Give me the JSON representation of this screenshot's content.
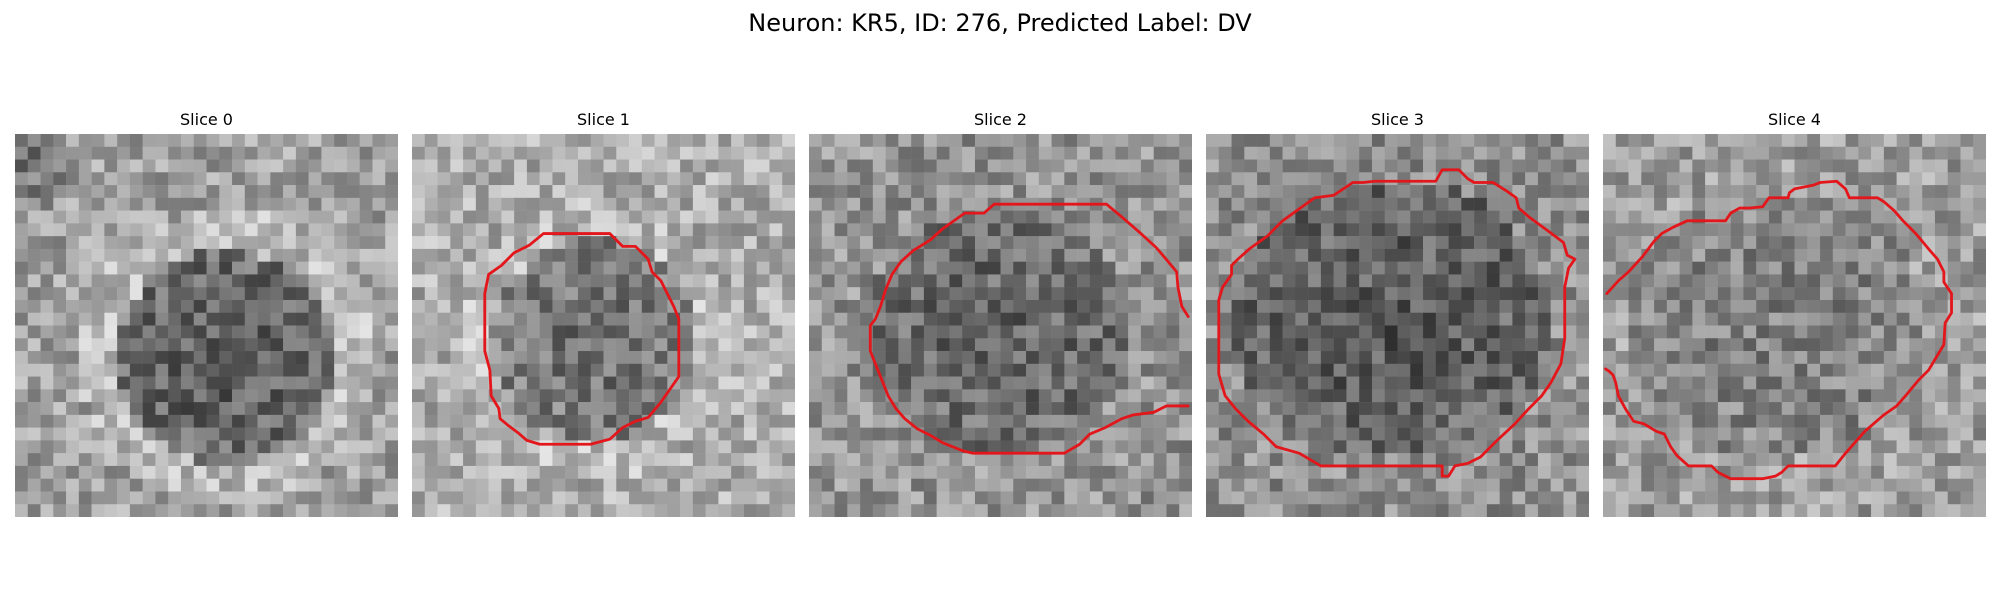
{
  "figure": {
    "title": "Neuron: KR5, ID: 276, Predicted Label: DV"
  },
  "contour_color": "#e3161b",
  "panels": [
    {
      "title": "Slice 0",
      "contour": null
    },
    {
      "title": "Slice 1",
      "contour": {
        "closed": true,
        "points": [
          [
            13.9,
            7.8
          ],
          [
            15.5,
            7.8
          ],
          [
            16.5,
            8.8
          ],
          [
            17.5,
            8.8
          ],
          [
            18.5,
            9.8
          ],
          [
            18.8,
            10.8
          ],
          [
            19.5,
            11.5
          ],
          [
            20.5,
            13.5
          ],
          [
            20.9,
            14.5
          ],
          [
            20.9,
            19
          ],
          [
            19.5,
            21
          ],
          [
            18.5,
            22.2
          ],
          [
            17.5,
            22.5
          ],
          [
            16.5,
            23
          ],
          [
            15.5,
            23.9
          ],
          [
            14,
            24.3
          ],
          [
            11.5,
            24.3
          ],
          [
            10,
            24.3
          ],
          [
            9,
            24
          ],
          [
            8.3,
            23.4
          ],
          [
            7.5,
            22.8
          ],
          [
            6.9,
            22.3
          ],
          [
            6.8,
            21.5
          ],
          [
            6.2,
            20.5
          ],
          [
            6.1,
            18.5
          ],
          [
            5.7,
            17
          ],
          [
            5.7,
            12.5
          ],
          [
            6,
            11
          ],
          [
            7,
            10.3
          ],
          [
            8,
            9.3
          ],
          [
            9.2,
            8.7
          ],
          [
            10.3,
            7.8
          ]
        ]
      }
    },
    {
      "title": "Slice 2",
      "contour": {
        "closed": false,
        "points": [
          [
            29.7,
            14.3
          ],
          [
            29.2,
            13.5
          ],
          [
            28.9,
            12
          ],
          [
            28.8,
            10.8
          ],
          [
            27.8,
            9.6
          ],
          [
            27.2,
            8.9
          ],
          [
            26,
            7.8
          ],
          [
            24.5,
            6.5
          ],
          [
            23.3,
            5.5
          ],
          [
            14.5,
            5.5
          ],
          [
            13.7,
            6.2
          ],
          [
            12.2,
            6.2
          ],
          [
            10.5,
            7.4
          ],
          [
            9.5,
            8.3
          ],
          [
            8.7,
            8.8
          ],
          [
            8.2,
            9.1
          ],
          [
            7.2,
            10
          ],
          [
            6.5,
            11
          ],
          [
            6,
            12.2
          ],
          [
            5.6,
            13.5
          ],
          [
            5.2,
            14.5
          ],
          [
            4.8,
            15
          ],
          [
            4.8,
            17
          ],
          [
            5.4,
            18.5
          ],
          [
            5.8,
            19.5
          ],
          [
            6.2,
            20.5
          ],
          [
            6.8,
            21.5
          ],
          [
            7.5,
            22.3
          ],
          [
            8.5,
            23.1
          ],
          [
            9.5,
            23.6
          ],
          [
            10.5,
            24.2
          ],
          [
            12,
            24.8
          ],
          [
            12.8,
            25
          ],
          [
            20,
            25
          ],
          [
            21.2,
            24.3
          ],
          [
            22,
            23.5
          ],
          [
            23.2,
            23
          ],
          [
            24.5,
            22.3
          ],
          [
            25.4,
            22
          ],
          [
            27,
            21.8
          ],
          [
            28,
            21.3
          ],
          [
            29.7,
            21.3
          ]
        ]
      }
    },
    {
      "title": "Slice 3",
      "contour": {
        "closed": true,
        "points": [
          [
            18.5,
            2.8
          ],
          [
            19.8,
            2.8
          ],
          [
            20.5,
            3.5
          ],
          [
            21,
            3.8
          ],
          [
            22.5,
            3.8
          ],
          [
            23.6,
            4.5
          ],
          [
            24.3,
            5
          ],
          [
            24.5,
            5.8
          ],
          [
            25.3,
            6.5
          ],
          [
            26.8,
            7.6
          ],
          [
            28,
            8.5
          ],
          [
            28.3,
            9.5
          ],
          [
            28.9,
            9.8
          ],
          [
            28.4,
            10.5
          ],
          [
            28.1,
            12
          ],
          [
            28.1,
            16
          ],
          [
            27.8,
            18
          ],
          [
            27,
            19.5
          ],
          [
            26.3,
            20.5
          ],
          [
            25.2,
            21.6
          ],
          [
            24.2,
            22.7
          ],
          [
            22.8,
            24
          ],
          [
            21.5,
            25.3
          ],
          [
            20.5,
            25.8
          ],
          [
            19.5,
            26
          ],
          [
            19,
            26.8
          ],
          [
            18.5,
            26.8
          ],
          [
            18.5,
            26
          ],
          [
            9,
            26
          ],
          [
            7.3,
            25
          ],
          [
            5.5,
            24.5
          ],
          [
            4.5,
            23.5
          ],
          [
            3.3,
            22.5
          ],
          [
            2.3,
            21.5
          ],
          [
            1.5,
            20.5
          ],
          [
            1.2,
            19.5
          ],
          [
            1,
            18.8
          ],
          [
            1,
            13
          ],
          [
            1.3,
            12
          ],
          [
            2,
            11
          ],
          [
            2,
            10.3
          ],
          [
            2.5,
            9.8
          ],
          [
            3.4,
            9
          ],
          [
            4.8,
            8
          ],
          [
            6,
            6.8
          ],
          [
            8.5,
            5
          ],
          [
            10,
            4.8
          ],
          [
            11.5,
            3.8
          ],
          [
            12.3,
            3.8
          ],
          [
            13.2,
            3.7
          ],
          [
            18,
            3.7
          ]
        ]
      }
    },
    {
      "title": "Slice 4",
      "contour": {
        "closed": false,
        "points": [
          [
            0.3,
            12.5
          ],
          [
            1.2,
            11.5
          ],
          [
            2,
            10.8
          ],
          [
            3.1,
            9.6
          ],
          [
            4,
            8.4
          ],
          [
            4.6,
            7.8
          ],
          [
            5.5,
            7.3
          ],
          [
            6.6,
            6.8
          ],
          [
            9.6,
            6.8
          ],
          [
            10,
            6.2
          ],
          [
            10.7,
            5.8
          ],
          [
            11.5,
            5.8
          ],
          [
            12.5,
            5.7
          ],
          [
            13,
            5
          ],
          [
            14.5,
            5
          ],
          [
            14.6,
            4.6
          ],
          [
            15,
            4.3
          ],
          [
            16.5,
            4
          ],
          [
            17,
            3.8
          ],
          [
            18.3,
            3.7
          ],
          [
            19,
            4.3
          ],
          [
            19.3,
            5
          ],
          [
            20.5,
            5
          ],
          [
            21.5,
            5
          ],
          [
            22,
            5.3
          ],
          [
            22.8,
            6
          ],
          [
            23.5,
            6.8
          ],
          [
            24.5,
            7.8
          ],
          [
            25.5,
            9
          ],
          [
            26.2,
            9.8
          ],
          [
            26.7,
            10.8
          ],
          [
            26.7,
            11.6
          ],
          [
            27.3,
            12.5
          ],
          [
            27.3,
            14
          ],
          [
            26.8,
            14.8
          ],
          [
            26.7,
            16.5
          ],
          [
            25.5,
            18.5
          ],
          [
            24.7,
            19.3
          ],
          [
            23.7,
            20.5
          ],
          [
            23,
            21.3
          ],
          [
            22,
            22
          ],
          [
            20.5,
            23.3
          ],
          [
            19,
            25
          ],
          [
            18.2,
            26
          ],
          [
            14.5,
            26
          ],
          [
            14,
            26.5
          ],
          [
            13.5,
            26.8
          ],
          [
            12.5,
            27
          ],
          [
            10,
            27
          ],
          [
            9,
            26.5
          ],
          [
            8.5,
            26
          ],
          [
            6.7,
            26
          ],
          [
            5.8,
            25.2
          ],
          [
            5.3,
            24.5
          ],
          [
            4.8,
            23.5
          ],
          [
            4.2,
            23.3
          ],
          [
            3.2,
            22.7
          ],
          [
            2.4,
            22.5
          ],
          [
            1.8,
            21.6
          ],
          [
            1.2,
            20.5
          ],
          [
            1,
            19.5
          ],
          [
            0.8,
            18.9
          ],
          [
            0.5,
            18.6
          ],
          [
            0.2,
            18.4
          ]
        ]
      }
    }
  ]
}
